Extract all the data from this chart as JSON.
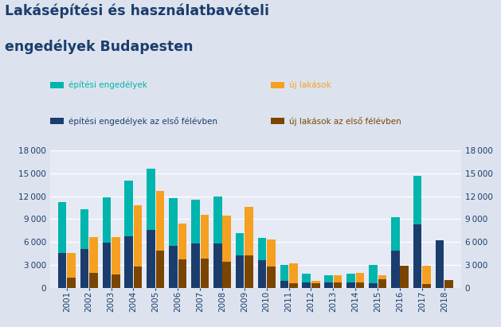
{
  "title_line1": "Lakásépítési és használatbavételi",
  "title_line2": "engedélyek Budapesten",
  "years": [
    2001,
    2002,
    2003,
    2004,
    2005,
    2006,
    2007,
    2008,
    2009,
    2010,
    2011,
    2012,
    2013,
    2014,
    2015,
    2016,
    2017,
    2018
  ],
  "epitesi_engedelyek": [
    11200,
    10300,
    11900,
    14000,
    15600,
    11700,
    11500,
    12000,
    7200,
    6500,
    3000,
    1800,
    1600,
    1800,
    3000,
    9200,
    14700,
    0
  ],
  "epitesi_engedelyek_felev": [
    4600,
    5100,
    5900,
    6700,
    7600,
    5500,
    5800,
    5800,
    4200,
    3600,
    900,
    700,
    700,
    700,
    600,
    4900,
    8300,
    6200
  ],
  "uj_lakasok": [
    4600,
    6600,
    6600,
    10800,
    12700,
    8400,
    9600,
    9500,
    10600,
    6300,
    3200,
    900,
    1600,
    1900,
    1600,
    2900,
    2900,
    0
  ],
  "uj_lakasok_felev": [
    1300,
    2000,
    1700,
    2800,
    4900,
    3700,
    3800,
    3400,
    4200,
    2800,
    600,
    600,
    700,
    700,
    1100,
    2900,
    500,
    1000
  ],
  "color_epitesi": "#00b5ad",
  "color_epitesi_felev": "#1b3d6e",
  "color_uj": "#f5a020",
  "color_uj_felev": "#7a4500",
  "ylim": [
    0,
    18000
  ],
  "yticks": [
    0,
    3000,
    6000,
    9000,
    12000,
    15000,
    18000
  ],
  "background_color": "#dce3ee",
  "plot_bg_color": "#e6eaf4",
  "title_color": "#1b3d6e",
  "tick_color": "#1b3d6e",
  "grid_color": "#ffffff",
  "legend_epitesi": "építési engedélyek",
  "legend_uj": "új lakások",
  "legend_epitesi_felev": "építési engedélyek az első félévben",
  "legend_uj_felev": "új lakások az első félévben"
}
